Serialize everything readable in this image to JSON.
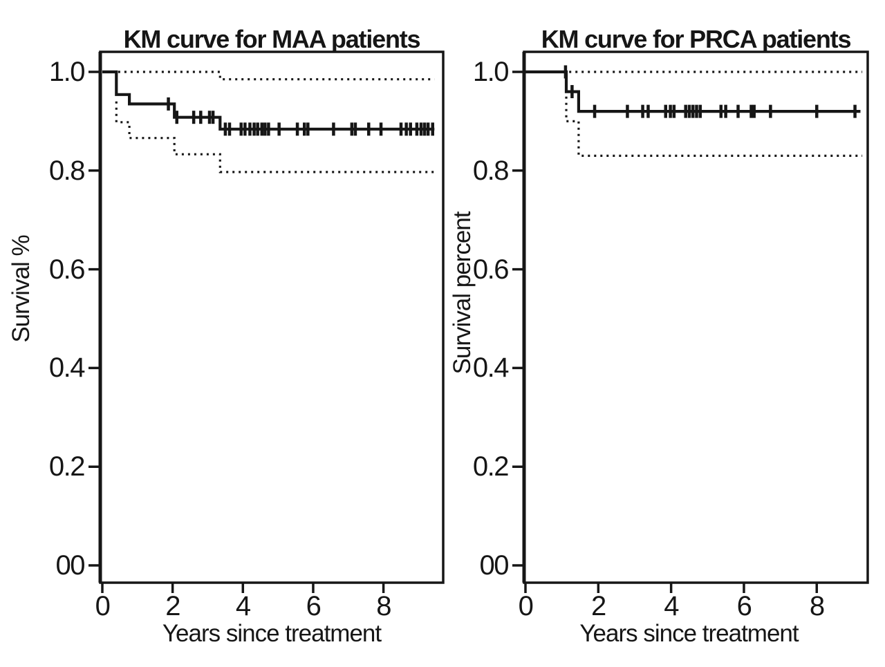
{
  "colors": {
    "ink": "#161616",
    "background": "#ffffff"
  },
  "chart_data": [
    {
      "type": "line",
      "subtype": "kaplan-meier-step",
      "title": "KM curve for MAA patients",
      "xlabel": "Years since treatment",
      "ylabel": "Survival %",
      "xlim": [
        0,
        9.7
      ],
      "ylim": [
        0,
        1.0
      ],
      "grid": false,
      "legend": null,
      "xticks": [
        0,
        2,
        4,
        6,
        8
      ],
      "xtick_labels": [
        "0",
        "2",
        "4",
        "6",
        "8"
      ],
      "ytick_values": [
        1.0,
        0.8,
        0.6,
        0.4,
        0.2,
        0.0
      ],
      "ytick_labels": [
        "1.0",
        "0.8",
        "0.6",
        "0.4",
        "0.2",
        "00"
      ],
      "series": [
        {
          "key": "km-curve",
          "name": "KM survival estimate",
          "style": "solid-step",
          "points": [
            [
              0,
              1.0
            ],
            [
              0.4,
              1.0
            ],
            [
              0.4,
              0.954
            ],
            [
              0.77,
              0.954
            ],
            [
              0.77,
              0.935
            ],
            [
              2.05,
              0.935
            ],
            [
              2.05,
              0.908
            ],
            [
              3.35,
              0.908
            ],
            [
              3.35,
              0.884
            ],
            [
              9.45,
              0.884
            ]
          ]
        },
        {
          "key": "ci-upper",
          "name": "Upper 95% confidence limit",
          "style": "dotted-step",
          "points": [
            [
              0.45,
              1.0
            ],
            [
              3.35,
              1.0
            ],
            [
              3.35,
              0.985
            ],
            [
              9.45,
              0.985
            ]
          ]
        },
        {
          "key": "ci-lower",
          "name": "Lower 95% confidence limit",
          "style": "dotted-step",
          "points": [
            [
              0.4,
              0.94
            ],
            [
              0.4,
              0.898
            ],
            [
              0.77,
              0.898
            ],
            [
              0.77,
              0.866
            ],
            [
              2.05,
              0.866
            ],
            [
              2.05,
              0.833
            ],
            [
              3.35,
              0.833
            ],
            [
              3.35,
              0.797
            ],
            [
              9.45,
              0.797
            ]
          ]
        }
      ],
      "censor_times": [
        1.88,
        2.12,
        2.6,
        2.8,
        3.05,
        3.15,
        3.5,
        3.62,
        3.95,
        4.06,
        4.2,
        4.32,
        4.42,
        4.54,
        4.63,
        4.73,
        5.03,
        5.55,
        5.75,
        5.85,
        6.58,
        7.1,
        7.2,
        7.58,
        7.93,
        8.5,
        8.65,
        8.77,
        8.95,
        9.07,
        9.17,
        9.27,
        9.4
      ]
    },
    {
      "type": "line",
      "subtype": "kaplan-meier-step",
      "title": "KM curve for PRCA patients",
      "xlabel": "Years since treatment",
      "ylabel": "Survival percent",
      "xlim": [
        0,
        9.4
      ],
      "ylim": [
        0,
        1.0
      ],
      "grid": false,
      "legend": null,
      "xticks": [
        0,
        2,
        4,
        6,
        8
      ],
      "xtick_labels": [
        "0",
        "2",
        "4",
        "6",
        "8"
      ],
      "ytick_values": [
        1.0,
        0.8,
        0.6,
        0.4,
        0.2,
        0.0
      ],
      "ytick_labels": [
        "1.0",
        "0.8",
        "0.6",
        "0.4",
        "0.2",
        "00"
      ],
      "series": [
        {
          "key": "km-curve",
          "name": "KM survival estimate",
          "style": "solid-step",
          "points": [
            [
              0,
              1.0
            ],
            [
              1.12,
              1.0
            ],
            [
              1.12,
              0.96
            ],
            [
              1.46,
              0.96
            ],
            [
              1.46,
              0.92
            ],
            [
              9.2,
              0.92
            ]
          ]
        },
        {
          "key": "ci-upper",
          "name": "Upper 95% confidence limit",
          "style": "dotted-step",
          "points": [
            [
              1.2,
              1.0
            ],
            [
              9.25,
              1.0
            ]
          ]
        },
        {
          "key": "ci-lower",
          "name": "Lower 95% confidence limit",
          "style": "dotted-step",
          "points": [
            [
              1.12,
              0.95
            ],
            [
              1.12,
              0.9
            ],
            [
              1.46,
              0.9
            ],
            [
              1.46,
              0.83
            ],
            [
              9.25,
              0.83
            ]
          ]
        }
      ],
      "censor_times": [
        1.1,
        1.28,
        1.9,
        2.8,
        3.22,
        3.37,
        3.85,
        3.98,
        4.08,
        4.4,
        4.5,
        4.6,
        4.7,
        4.8,
        5.37,
        5.5,
        5.84,
        6.2,
        6.28,
        6.73,
        8.0,
        9.05
      ]
    }
  ]
}
